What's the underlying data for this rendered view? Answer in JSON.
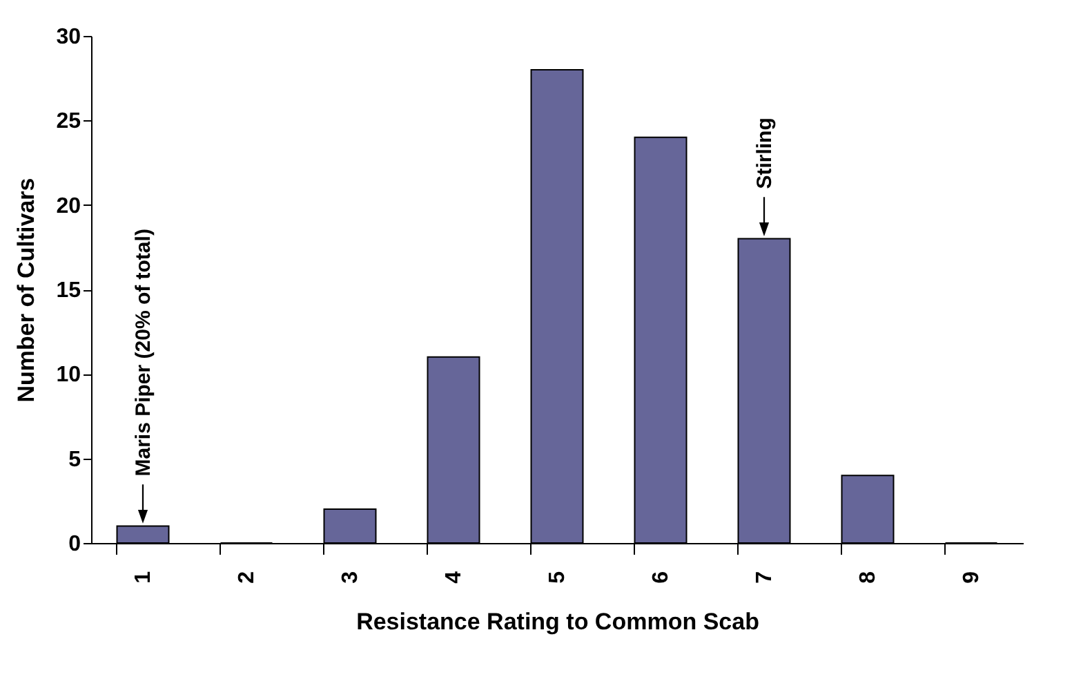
{
  "chart_data": {
    "type": "bar",
    "xlabel": "Resistance Rating to Common Scab",
    "ylabel": "Number of Cultivars",
    "categories": [
      "1",
      "2",
      "3",
      "4",
      "5",
      "6",
      "7",
      "8",
      "9"
    ],
    "values": [
      1,
      0,
      2,
      11,
      28,
      24,
      18,
      4,
      0
    ],
    "color": "#666699",
    "ylim": [
      0,
      30
    ],
    "yticks": [
      0,
      5,
      10,
      15,
      20,
      25,
      30
    ],
    "annotations": [
      {
        "text": "Maris Piper (20% of total)",
        "x": "1",
        "y": 1
      },
      {
        "text": "Stirling",
        "x": "7",
        "y": 18
      }
    ]
  }
}
